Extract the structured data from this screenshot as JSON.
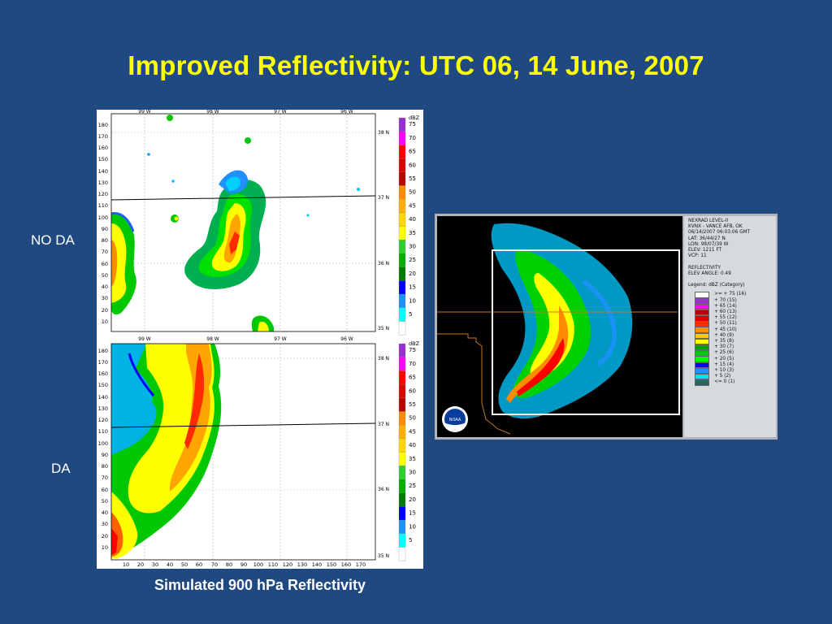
{
  "slide": {
    "title": "Improved Reflectivity: UTC 06, 14 June, 2007",
    "label_top": "NO DA",
    "label_bottom": "DA",
    "caption": "Simulated 900 hPa  Reflectivity"
  },
  "sim_panel": {
    "lon_labels": [
      "99 W",
      "98 W",
      "97 W",
      "96 W"
    ],
    "lat_labels": [
      "38 N",
      "37 N",
      "36 N",
      "35 N"
    ],
    "y_ticks": [
      "180",
      "170",
      "160",
      "150",
      "140",
      "130",
      "120",
      "110",
      "100",
      "90",
      "80",
      "70",
      "60",
      "50",
      "40",
      "30",
      "20",
      "10"
    ],
    "x_ticks": [
      "10",
      "20",
      "30",
      "40",
      "50",
      "60",
      "70",
      "80",
      "90",
      "100",
      "110",
      "120",
      "130",
      "140",
      "150",
      "160",
      "170"
    ],
    "colorbar_unit": "dBZ",
    "colorbar_labels": [
      "75",
      "70",
      "65",
      "60",
      "55",
      "50",
      "45",
      "40",
      "35",
      "30",
      "25",
      "20",
      "15",
      "10",
      "5"
    ],
    "colorbar_colors": [
      "#9932cc",
      "#ff00ff",
      "#ff0000",
      "#dd0000",
      "#bb0000",
      "#ff8c00",
      "#ffb000",
      "#ffd700",
      "#ffff00",
      "#32cd32",
      "#00b000",
      "#007a00",
      "#0000ff",
      "#1e90ff",
      "#00ffff",
      "#ffffff"
    ]
  },
  "nexrad": {
    "info_lines": [
      "NEXRAD LEVEL-II",
      "KVNX - VANCE AFB, OK",
      "06/14/2007 06:03:06 GMT",
      "LAT: 36/44/27 N",
      "LON: 98/07/39 W",
      "ELEV: 1211 FT",
      "VCP: 11",
      "",
      "REFLECTIVITY",
      "ELEV ANGLE: 0.49",
      "",
      "Legend: dBZ (Category)"
    ],
    "legend": [
      {
        "label": ">= + 75 (16)",
        "color": "#ffffff"
      },
      {
        "label": "+ 70 (15)",
        "color": "#9932cc"
      },
      {
        "label": "+ 65 (14)",
        "color": "#ff00ff"
      },
      {
        "label": "+ 60 (13)",
        "color": "#c00000"
      },
      {
        "label": "+ 55 (12)",
        "color": "#e00000"
      },
      {
        "label": "+ 50 (11)",
        "color": "#ff2a00"
      },
      {
        "label": "+ 45 (10)",
        "color": "#ff8c00"
      },
      {
        "label": "+ 40 (9)",
        "color": "#ffc800"
      },
      {
        "label": "+ 35 (8)",
        "color": "#ffff00"
      },
      {
        "label": "+ 30 (7)",
        "color": "#00a000"
      },
      {
        "label": "+ 25 (6)",
        "color": "#00c800"
      },
      {
        "label": "+ 20 (5)",
        "color": "#00ff00"
      },
      {
        "label": "+ 15 (4)",
        "color": "#0000ff"
      },
      {
        "label": "+ 10 (3)",
        "color": "#1e90ff"
      },
      {
        "label": "+ 5 (2)",
        "color": "#00e0ff"
      },
      {
        "label": "<= 0 (1)",
        "color": "#2f6060"
      }
    ],
    "logo_text": "NOAA"
  }
}
